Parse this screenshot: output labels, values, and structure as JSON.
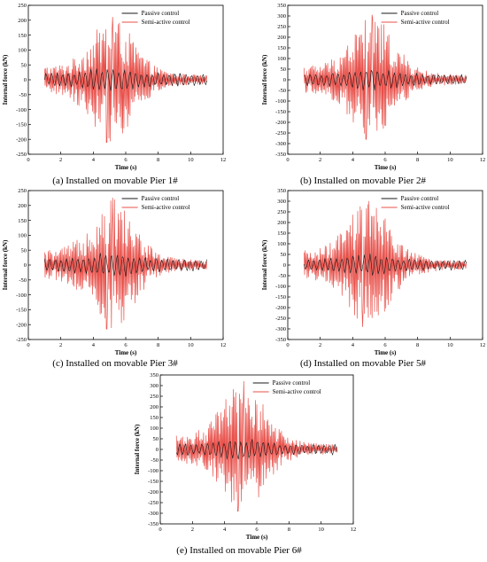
{
  "chart_data": [
    {
      "type": "line",
      "caption": "(a) Installed on movable Pier 1#",
      "xlabel": "Time (s)",
      "ylabel": "Internal force (kN)",
      "xlim": [
        0,
        12
      ],
      "ylim": [
        -250,
        250
      ],
      "xticks": [
        0,
        2,
        4,
        6,
        8,
        10,
        12
      ],
      "yticks": [
        -250,
        -200,
        -150,
        -100,
        -50,
        0,
        50,
        100,
        150,
        200,
        250
      ],
      "legend_position": "top-right",
      "legend": [
        "Passive control",
        "Semi-active control"
      ],
      "series": [
        {
          "name": "Passive control",
          "color": "#1a1a1a",
          "x_range": [
            1,
            11
          ],
          "peak": 45
        },
        {
          "name": "Semi-active control",
          "color": "#e8504a",
          "x_range": [
            1,
            11
          ],
          "peak_max": 210,
          "peak_min": -210,
          "peak_time": 5.2
        }
      ]
    },
    {
      "type": "line",
      "caption": "(b) Installed on movable Pier 2#",
      "xlabel": "Time (s)",
      "ylabel": "Internal force (kN)",
      "xlim": [
        0,
        12
      ],
      "ylim": [
        -350,
        350
      ],
      "xticks": [
        0,
        2,
        4,
        6,
        8,
        10,
        12
      ],
      "yticks": [
        -350,
        -300,
        -250,
        -200,
        -150,
        -100,
        -50,
        0,
        50,
        100,
        150,
        200,
        250,
        300,
        350
      ],
      "legend_position": "top-right",
      "legend": [
        "Passive control",
        "Semi-active control"
      ],
      "series": [
        {
          "name": "Passive control",
          "color": "#1a1a1a",
          "x_range": [
            1,
            11
          ],
          "peak": 55
        },
        {
          "name": "Semi-active control",
          "color": "#e8504a",
          "x_range": [
            1,
            11
          ],
          "peak_max": 305,
          "peak_min": -280,
          "peak_time": 5.2
        }
      ]
    },
    {
      "type": "line",
      "caption": "(c) Installed on movable Pier 3#",
      "xlabel": "Time (s)",
      "ylabel": "Internal force (kN)",
      "xlim": [
        0,
        12
      ],
      "ylim": [
        -250,
        250
      ],
      "xticks": [
        0,
        2,
        4,
        6,
        8,
        10,
        12
      ],
      "yticks": [
        -250,
        -200,
        -150,
        -100,
        -50,
        0,
        50,
        100,
        150,
        200,
        250
      ],
      "legend_position": "top-right",
      "legend": [
        "Passive control",
        "Semi-active control"
      ],
      "series": [
        {
          "name": "Passive control",
          "color": "#1a1a1a",
          "x_range": [
            1,
            11
          ],
          "peak": 45
        },
        {
          "name": "Semi-active control",
          "color": "#e8504a",
          "x_range": [
            1,
            11
          ],
          "peak_max": 225,
          "peak_min": -215,
          "peak_time": 5.2
        }
      ]
    },
    {
      "type": "line",
      "caption": "(d) Installed on movable Pier 5#",
      "xlabel": "Time (s)",
      "ylabel": "Internal force (kN)",
      "xlim": [
        0,
        12
      ],
      "ylim": [
        -350,
        350
      ],
      "xticks": [
        0,
        2,
        4,
        6,
        8,
        10,
        12
      ],
      "yticks": [
        -350,
        -300,
        -250,
        -200,
        -150,
        -100,
        -50,
        0,
        50,
        100,
        150,
        200,
        250,
        300,
        350
      ],
      "legend_position": "top-right",
      "legend": [
        "Passive control",
        "Semi-active control"
      ],
      "series": [
        {
          "name": "Passive control",
          "color": "#1a1a1a",
          "x_range": [
            1,
            11
          ],
          "peak": 55
        },
        {
          "name": "Semi-active control",
          "color": "#e8504a",
          "x_range": [
            1,
            11
          ],
          "peak_max": 300,
          "peak_min": -290,
          "peak_time": 5.0
        }
      ]
    },
    {
      "type": "line",
      "caption": "(e) Installed on movable Pier 6#",
      "xlabel": "Time (s)",
      "ylabel": "Internal force (kN)",
      "xlim": [
        0,
        12
      ],
      "ylim": [
        -350,
        350
      ],
      "xticks": [
        0,
        2,
        4,
        6,
        8,
        10,
        12
      ],
      "yticks": [
        -350,
        -300,
        -250,
        -200,
        -150,
        -100,
        -50,
        0,
        50,
        100,
        150,
        200,
        250,
        300,
        350
      ],
      "legend_position": "top-right",
      "legend": [
        "Passive control",
        "Semi-active control"
      ],
      "series": [
        {
          "name": "Passive control",
          "color": "#1a1a1a",
          "x_range": [
            1,
            11
          ],
          "peak": 55
        },
        {
          "name": "Semi-active control",
          "color": "#e8504a",
          "x_range": [
            1,
            11
          ],
          "peak_max": 320,
          "peak_min": -290,
          "peak_time": 5.2
        }
      ]
    }
  ]
}
